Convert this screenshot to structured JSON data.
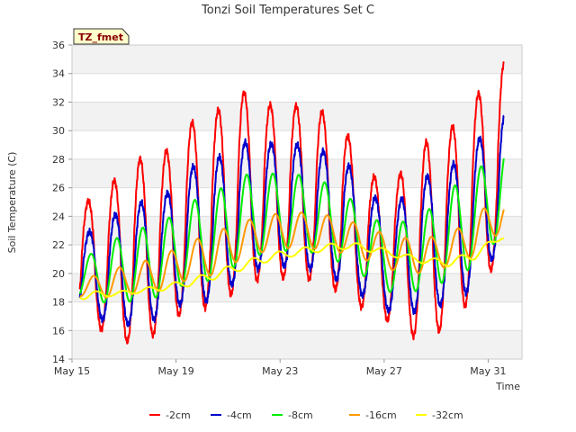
{
  "chart_data": {
    "type": "line",
    "title": "Tonzi Soil Temperatures Set C",
    "xlabel": "Time",
    "ylabel": "Soil Temperature (C)",
    "badge": "TZ_fmet",
    "xlim": [
      0,
      17.3
    ],
    "ylim": [
      14,
      36
    ],
    "x_ticks": [
      {
        "x": 0,
        "label": "May 15"
      },
      {
        "x": 4,
        "label": "May 19"
      },
      {
        "x": 8,
        "label": "May 23"
      },
      {
        "x": 12,
        "label": "May 27"
      },
      {
        "x": 16,
        "label": "May 31"
      }
    ],
    "y_ticks": [
      14,
      16,
      18,
      20,
      22,
      24,
      26,
      28,
      30,
      32,
      34,
      36
    ],
    "grid": true,
    "legend_position": "bottom",
    "day_start": 0.3,
    "day_end": 16.6,
    "series": [
      {
        "name": "-2cm",
        "color": "#ff0000",
        "min": [
          16.9,
          15.6,
          15.0,
          16.1,
          17.7,
          17.5,
          19.1,
          19.8,
          19.6,
          19.6,
          18.4,
          17.2,
          16.4,
          15.1,
          16.5,
          18.5,
          21.3
        ],
        "max": [
          24.9,
          26.3,
          28.0,
          28.3,
          30.5,
          31.3,
          32.8,
          31.8,
          31.8,
          31.5,
          30.0,
          26.8,
          26.7,
          29.1,
          30.0,
          32.3,
          34.8
        ]
      },
      {
        "name": "-4cm",
        "color": "#0000cc",
        "min": [
          17.5,
          16.4,
          16.4,
          17.0,
          18.2,
          18.0,
          19.8,
          20.6,
          20.4,
          20.3,
          19.2,
          18.1,
          17.0,
          17.5,
          17.9,
          19.0,
          22.0
        ],
        "max": [
          22.7,
          24.0,
          24.9,
          25.3,
          27.4,
          28.0,
          29.2,
          29.1,
          29.1,
          28.7,
          27.9,
          25.4,
          24.9,
          26.7,
          27.4,
          29.1,
          31.3
        ]
      },
      {
        "name": "-8cm",
        "color": "#00ee00",
        "min": [
          18.4,
          17.8,
          18.1,
          18.4,
          19.4,
          19.5,
          20.8,
          21.5,
          21.6,
          21.4,
          20.6,
          19.5,
          18.4,
          18.9,
          19.5,
          20.5,
          22.7
        ],
        "max": [
          21.1,
          22.3,
          23.1,
          23.6,
          25.0,
          25.7,
          26.9,
          27.0,
          27.0,
          26.6,
          25.6,
          23.8,
          23.5,
          24.1,
          25.9,
          27.1,
          28.9
        ]
      },
      {
        "name": "-16cm",
        "color": "#ff9900",
        "min": [
          18.4,
          18.3,
          18.6,
          18.8,
          19.6,
          19.9,
          21.0,
          21.6,
          21.8,
          21.7,
          21.4,
          20.8,
          20.1,
          20.0,
          20.5,
          21.2,
          23.0
        ],
        "max": [
          19.6,
          20.3,
          20.7,
          21.3,
          22.2,
          22.9,
          23.6,
          24.1,
          24.3,
          24.2,
          23.8,
          23.1,
          22.5,
          22.5,
          22.7,
          24.1,
          25.5
        ]
      },
      {
        "name": "-32cm",
        "color": "#ffff00",
        "min": [
          18.2,
          18.4,
          18.6,
          18.8,
          19.1,
          19.6,
          20.2,
          20.8,
          21.2,
          21.5,
          21.7,
          21.5,
          21.1,
          20.7,
          20.5,
          21.0,
          22.4
        ],
        "max": [
          18.8,
          18.7,
          18.9,
          19.2,
          19.6,
          20.2,
          20.8,
          21.4,
          21.7,
          22.0,
          22.2,
          22.0,
          21.5,
          21.1,
          21.0,
          21.6,
          22.8
        ]
      }
    ]
  }
}
